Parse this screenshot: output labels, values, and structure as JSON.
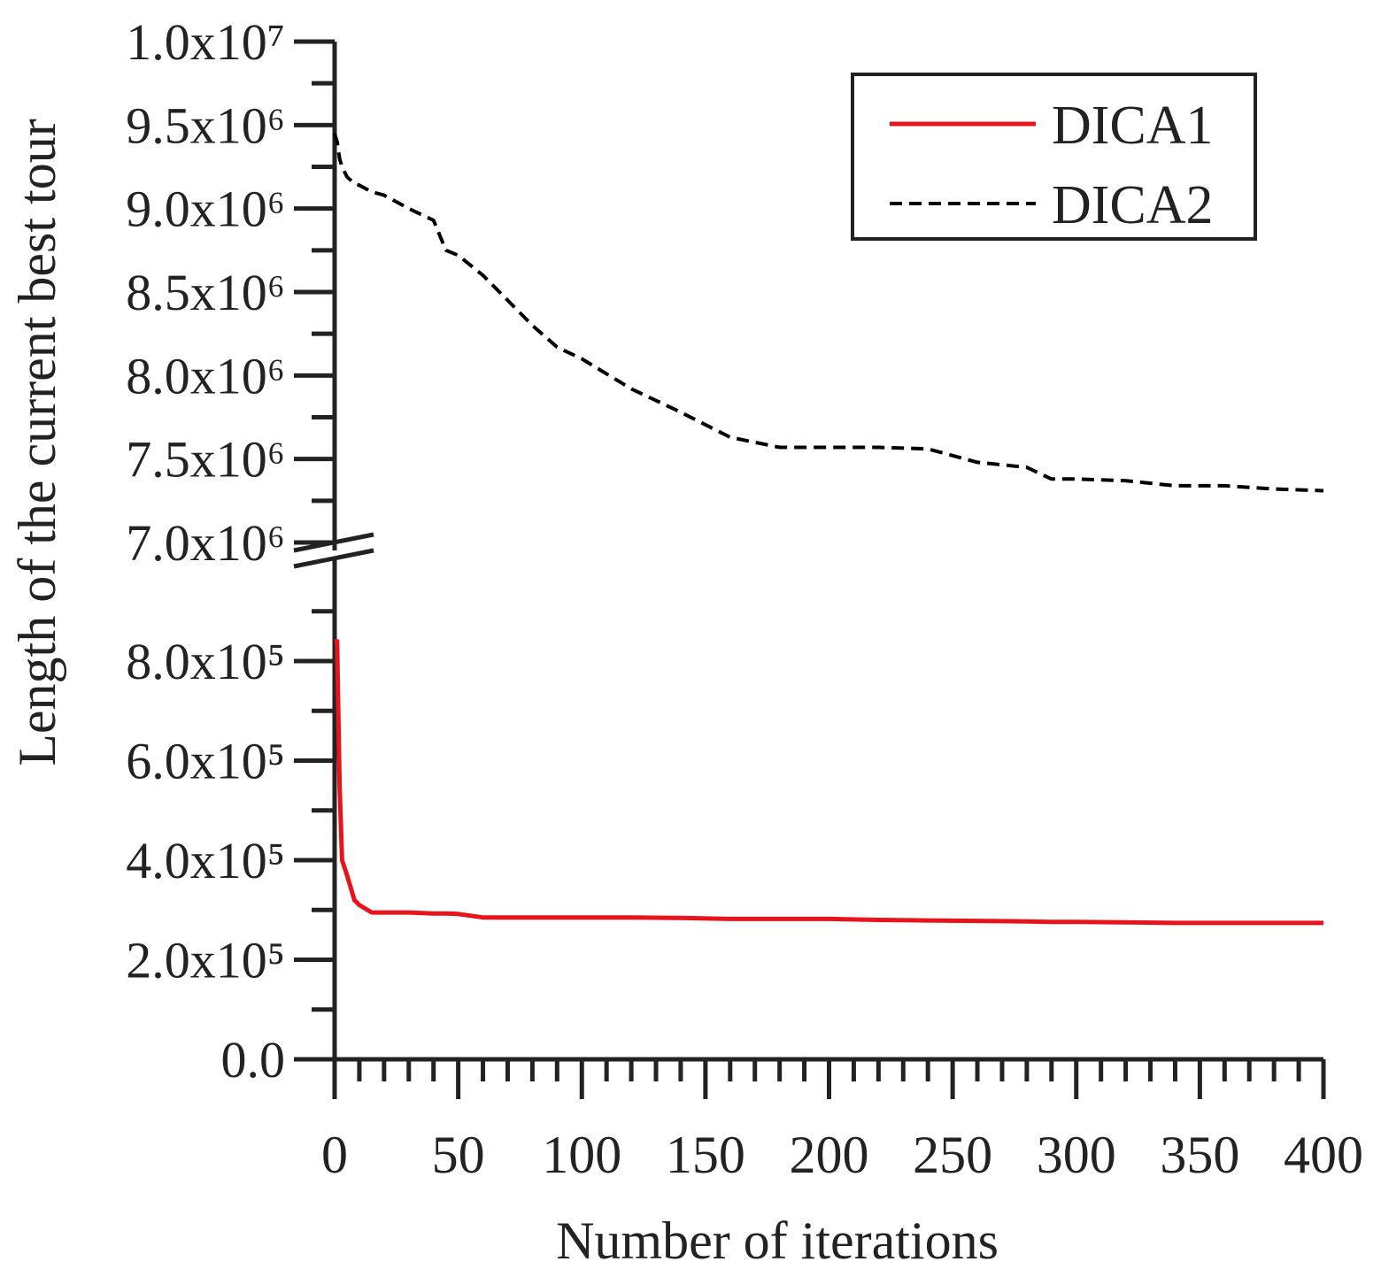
{
  "chart_data": {
    "type": "line",
    "x_label": "Number of iterations",
    "y_label": "Length of the current best tour",
    "x": [
      0,
      1,
      2,
      3,
      5,
      8,
      10,
      15,
      20,
      30,
      40,
      45,
      50,
      60,
      70,
      80,
      90,
      100,
      120,
      140,
      160,
      180,
      200,
      220,
      240,
      260,
      280,
      290,
      300,
      320,
      340,
      360,
      380,
      400
    ],
    "series": [
      {
        "name": "DICA1",
        "color": "#e8141c",
        "dash": "solid",
        "axis": "y",
        "values": [
          840000,
          840000,
          550000,
          400000,
          370000,
          320000,
          310000,
          295000,
          295000,
          295000,
          293000,
          293000,
          292000,
          285000,
          285000,
          285000,
          285000,
          285000,
          285000,
          284000,
          282000,
          282000,
          282000,
          280000,
          279000,
          278000,
          277000,
          276000,
          276000,
          275000,
          274000,
          274000,
          274000,
          274000
        ]
      },
      {
        "name": "DICA2",
        "color": "#000000",
        "dash": "dashed",
        "axis": "y2",
        "values": [
          9450000,
          9400000,
          9300000,
          9250000,
          9190000,
          9150000,
          9140000,
          9100000,
          9080000,
          9000000,
          8930000,
          8750000,
          8720000,
          8600000,
          8450000,
          8300000,
          8170000,
          8100000,
          7920000,
          7780000,
          7630000,
          7570000,
          7570000,
          7570000,
          7560000,
          7480000,
          7450000,
          7380000,
          7380000,
          7370000,
          7340000,
          7340000,
          7320000,
          7310000
        ]
      }
    ],
    "xlim": [
      0,
      400
    ],
    "xticks": [
      0,
      50,
      100,
      150,
      200,
      250,
      300,
      350,
      400
    ],
    "xminorticks": [
      10,
      20,
      30,
      40,
      60,
      70,
      80,
      90,
      110,
      120,
      130,
      140,
      160,
      170,
      180,
      190,
      210,
      220,
      230,
      240,
      260,
      270,
      280,
      290,
      310,
      320,
      330,
      340,
      360,
      370,
      380,
      390
    ],
    "ylim": [
      0,
      1000000
    ],
    "yticks": [
      {
        "value": 0,
        "label": "0.0"
      },
      {
        "value": 200000,
        "label": "2.0x10⁵"
      },
      {
        "value": 400000,
        "label": "4.0x10⁵"
      },
      {
        "value": 600000,
        "label": "6.0x10⁵"
      },
      {
        "value": 800000,
        "label": "8.0x10⁵"
      }
    ],
    "yminorticks": [
      100000,
      300000,
      500000,
      700000,
      900000
    ],
    "y2lim": [
      7000000,
      10000000
    ],
    "y2ticks": [
      {
        "value": 7000000,
        "label": "7.0x10⁶"
      },
      {
        "value": 7500000,
        "label": "7.5x10⁶"
      },
      {
        "value": 8000000,
        "label": "8.0x10⁶"
      },
      {
        "value": 8500000,
        "label": "8.5x10⁶"
      },
      {
        "value": 9000000,
        "label": "9.0x10⁶"
      },
      {
        "value": 9500000,
        "label": "9.5x10⁶"
      },
      {
        "value": 10000000,
        "label": "1.0x10⁷"
      }
    ],
    "y2minorticks": [
      7250000,
      7750000,
      8250000,
      8750000,
      9250000,
      9750000
    ],
    "axis_break": true,
    "legend": "upper right",
    "grid": false
  }
}
